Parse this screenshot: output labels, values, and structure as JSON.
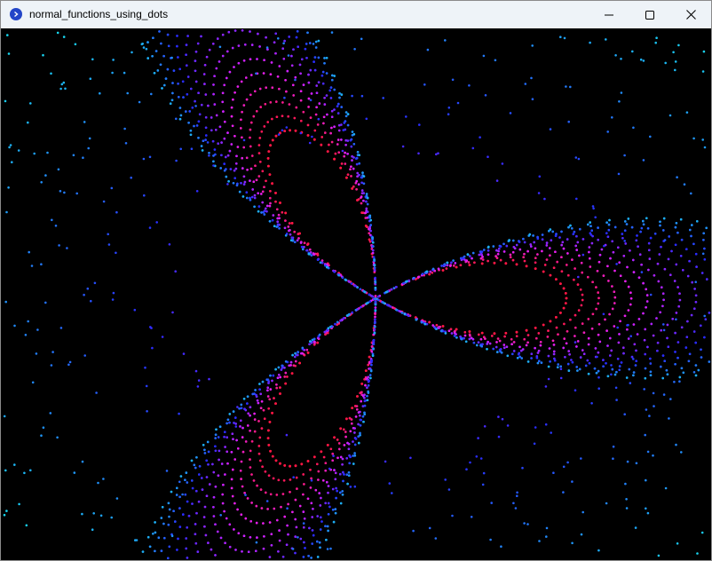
{
  "window": {
    "title": "normal_functions_using_dots",
    "icon": "app-icon",
    "controls": {
      "minimize_icon": "minimize-icon",
      "maximize_icon": "maximize-icon",
      "close_icon": "close-icon"
    }
  },
  "canvas": {
    "background": "#000000",
    "visualization": "trefoil-curve-dots",
    "colors": {
      "near": "#ff1744",
      "mid": "#e020ff",
      "far_blue": "#2a2cff",
      "edge_cyan": "#18d8f0"
    }
  }
}
